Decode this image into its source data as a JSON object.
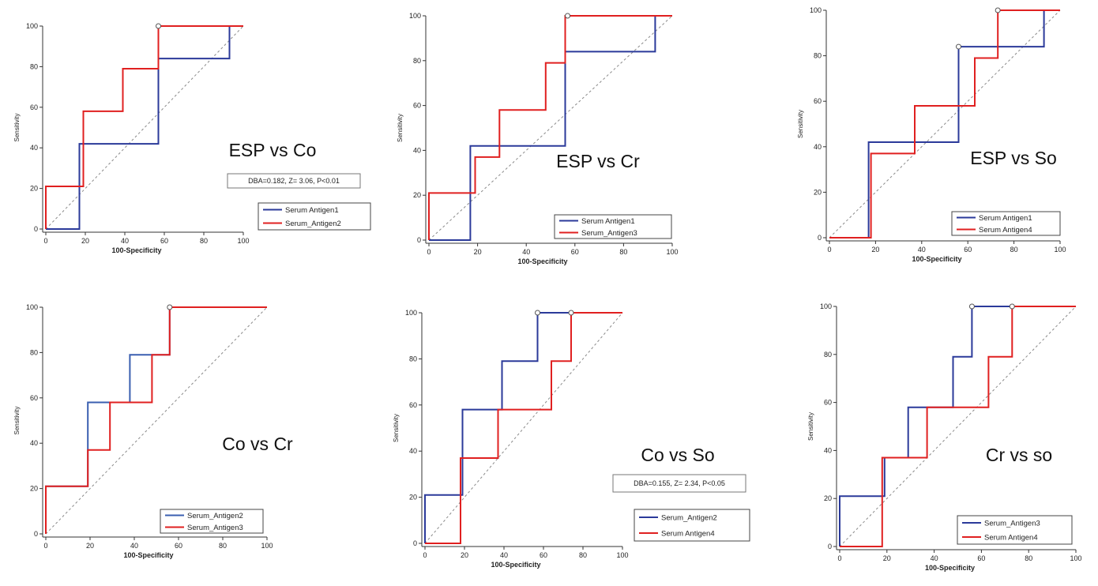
{
  "chart_data": [
    {
      "type": "line",
      "title": "ESP vs Co",
      "stats": "DBA=0.182, Z= 3.06, P<0.01",
      "xlabel": "100-Specificity",
      "ylabel": "Sensitivity",
      "xlim": [
        0,
        100
      ],
      "ylim": [
        0,
        100
      ],
      "xticks": [
        "0",
        "20",
        "40",
        "60",
        "80",
        "100"
      ],
      "yticks": [
        "0",
        "20",
        "40",
        "60",
        "80",
        "100"
      ],
      "legend_position": "bottom-right",
      "series": [
        {
          "name": "Serum Antigen1",
          "color": "#2b3a9a",
          "points": [
            [
              0,
              0
            ],
            [
              17,
              0
            ],
            [
              17,
              42
            ],
            [
              57,
              42
            ],
            [
              57,
              84
            ],
            [
              93,
              84
            ],
            [
              93,
              100
            ],
            [
              100,
              100
            ]
          ]
        },
        {
          "name": "Serum_Antigen2",
          "color": "#e02020",
          "points": [
            [
              0,
              0
            ],
            [
              0,
              21
            ],
            [
              19,
              21
            ],
            [
              19,
              58
            ],
            [
              39,
              58
            ],
            [
              39,
              79
            ],
            [
              57,
              79
            ],
            [
              57,
              100
            ],
            [
              100,
              100
            ]
          ]
        }
      ],
      "markers": [
        [
          57,
          100
        ]
      ]
    },
    {
      "type": "line",
      "title": "ESP vs Cr",
      "stats": "",
      "xlabel": "100-Specificity",
      "ylabel": "Sensitivity",
      "xlim": [
        0,
        100
      ],
      "ylim": [
        0,
        100
      ],
      "xticks": [
        "0",
        "20",
        "40",
        "60",
        "80",
        "100"
      ],
      "yticks": [
        "0",
        "20",
        "40",
        "60",
        "80",
        "100"
      ],
      "legend_position": "bottom-right",
      "series": [
        {
          "name": "Serum Antigen1",
          "color": "#2b3a9a",
          "points": [
            [
              0,
              0
            ],
            [
              17,
              0
            ],
            [
              17,
              42
            ],
            [
              56,
              42
            ],
            [
              56,
              84
            ],
            [
              93,
              84
            ],
            [
              93,
              100
            ],
            [
              100,
              100
            ]
          ]
        },
        {
          "name": "Serum_Antigen3",
          "color": "#e02020",
          "points": [
            [
              0,
              0
            ],
            [
              0,
              21
            ],
            [
              19,
              21
            ],
            [
              19,
              37
            ],
            [
              29,
              37
            ],
            [
              29,
              58
            ],
            [
              48,
              58
            ],
            [
              48,
              79
            ],
            [
              56,
              79
            ],
            [
              56,
              100
            ],
            [
              100,
              100
            ]
          ]
        }
      ],
      "markers": [
        [
          57,
          100
        ]
      ]
    },
    {
      "type": "line",
      "title": "ESP vs So",
      "stats": "",
      "xlabel": "100-Specificity",
      "ylabel": "Sensitivity",
      "xlim": [
        0,
        100
      ],
      "ylim": [
        0,
        100
      ],
      "xticks": [
        "0",
        "20",
        "40",
        "60",
        "80",
        "100"
      ],
      "yticks": [
        "0",
        "20",
        "40",
        "60",
        "80",
        "100"
      ],
      "legend_position": "bottom-right",
      "series": [
        {
          "name": "Serum Antigen1",
          "color": "#2b3a9a",
          "points": [
            [
              0,
              0
            ],
            [
              17,
              0
            ],
            [
              17,
              42
            ],
            [
              56,
              42
            ],
            [
              56,
              84
            ],
            [
              93,
              84
            ],
            [
              93,
              100
            ],
            [
              100,
              100
            ]
          ]
        },
        {
          "name": "Serum Antigen4",
          "color": "#e02020",
          "points": [
            [
              0,
              0
            ],
            [
              18,
              0
            ],
            [
              18,
              37
            ],
            [
              37,
              37
            ],
            [
              37,
              58
            ],
            [
              63,
              58
            ],
            [
              63,
              79
            ],
            [
              73,
              79
            ],
            [
              73,
              100
            ],
            [
              100,
              100
            ]
          ]
        }
      ],
      "markers": [
        [
          56,
          84
        ],
        [
          73,
          100
        ]
      ]
    },
    {
      "type": "line",
      "title": "Co vs Cr",
      "stats": "",
      "xlabel": "100-Specificity",
      "ylabel": "Sensitivity",
      "xlim": [
        0,
        100
      ],
      "ylim": [
        0,
        100
      ],
      "xticks": [
        "0",
        "20",
        "40",
        "60",
        "80",
        "100"
      ],
      "yticks": [
        "0",
        "20",
        "40",
        "60",
        "80",
        "100"
      ],
      "legend_position": "bottom-left",
      "series": [
        {
          "name": "Serum_Antigen2",
          "color": "#3a5fb0",
          "points": [
            [
              0,
              0
            ],
            [
              0,
              21
            ],
            [
              19,
              21
            ],
            [
              19,
              58
            ],
            [
              38,
              58
            ],
            [
              38,
              79
            ],
            [
              56,
              79
            ],
            [
              56,
              100
            ],
            [
              100,
              100
            ]
          ]
        },
        {
          "name": "Serum_Antigen3",
          "color": "#e02020",
          "points": [
            [
              0,
              0
            ],
            [
              0,
              21
            ],
            [
              19,
              21
            ],
            [
              19,
              37
            ],
            [
              29,
              37
            ],
            [
              29,
              58
            ],
            [
              48,
              58
            ],
            [
              48,
              79
            ],
            [
              56,
              79
            ],
            [
              56,
              100
            ],
            [
              100,
              100
            ]
          ]
        }
      ],
      "markers": [
        [
          56,
          100
        ]
      ]
    },
    {
      "type": "line",
      "title": "Co vs So",
      "stats": "DBA=0.155, Z= 2.34, P<0.05",
      "xlabel": "100-Specificity",
      "ylabel": "Sensitivity",
      "xlim": [
        0,
        100
      ],
      "ylim": [
        0,
        100
      ],
      "xticks": [
        "0",
        "20",
        "40",
        "60",
        "80",
        "100"
      ],
      "yticks": [
        "0",
        "20",
        "40",
        "60",
        "80",
        "100"
      ],
      "legend_position": "bottom-right",
      "series": [
        {
          "name": "Serum_Antigen2",
          "color": "#2b3a9a",
          "points": [
            [
              0,
              0
            ],
            [
              0,
              21
            ],
            [
              19,
              21
            ],
            [
              19,
              58
            ],
            [
              39,
              58
            ],
            [
              39,
              79
            ],
            [
              57,
              79
            ],
            [
              57,
              100
            ],
            [
              100,
              100
            ]
          ]
        },
        {
          "name": "Serum Antigen4",
          "color": "#e02020",
          "points": [
            [
              0,
              0
            ],
            [
              18,
              0
            ],
            [
              18,
              37
            ],
            [
              37,
              37
            ],
            [
              37,
              58
            ],
            [
              64,
              58
            ],
            [
              64,
              79
            ],
            [
              74,
              79
            ],
            [
              74,
              100
            ],
            [
              100,
              100
            ]
          ]
        }
      ],
      "markers": [
        [
          57,
          100
        ],
        [
          74,
          100
        ]
      ]
    },
    {
      "type": "line",
      "title": "Cr vs so",
      "stats": "",
      "xlabel": "100-Specificity",
      "ylabel": "Sensitivity",
      "xlim": [
        0,
        100
      ],
      "ylim": [
        0,
        100
      ],
      "xticks": [
        "0",
        "20",
        "40",
        "60",
        "80",
        "100"
      ],
      "yticks": [
        "0",
        "20",
        "40",
        "60",
        "80",
        "100"
      ],
      "legend_position": "bottom-right",
      "series": [
        {
          "name": "Serum_Antigen3",
          "color": "#2b3a9a",
          "points": [
            [
              0,
              0
            ],
            [
              0,
              21
            ],
            [
              19,
              21
            ],
            [
              19,
              37
            ],
            [
              29,
              37
            ],
            [
              29,
              58
            ],
            [
              48,
              58
            ],
            [
              48,
              79
            ],
            [
              56,
              79
            ],
            [
              56,
              100
            ],
            [
              100,
              100
            ]
          ]
        },
        {
          "name": "Serum Antigen4",
          "color": "#e02020",
          "points": [
            [
              0,
              0
            ],
            [
              18,
              0
            ],
            [
              18,
              37
            ],
            [
              37,
              37
            ],
            [
              37,
              58
            ],
            [
              63,
              58
            ],
            [
              63,
              79
            ],
            [
              73,
              79
            ],
            [
              73,
              100
            ],
            [
              100,
              100
            ]
          ]
        }
      ],
      "markers": [
        [
          56,
          100
        ],
        [
          73,
          100
        ]
      ]
    }
  ]
}
